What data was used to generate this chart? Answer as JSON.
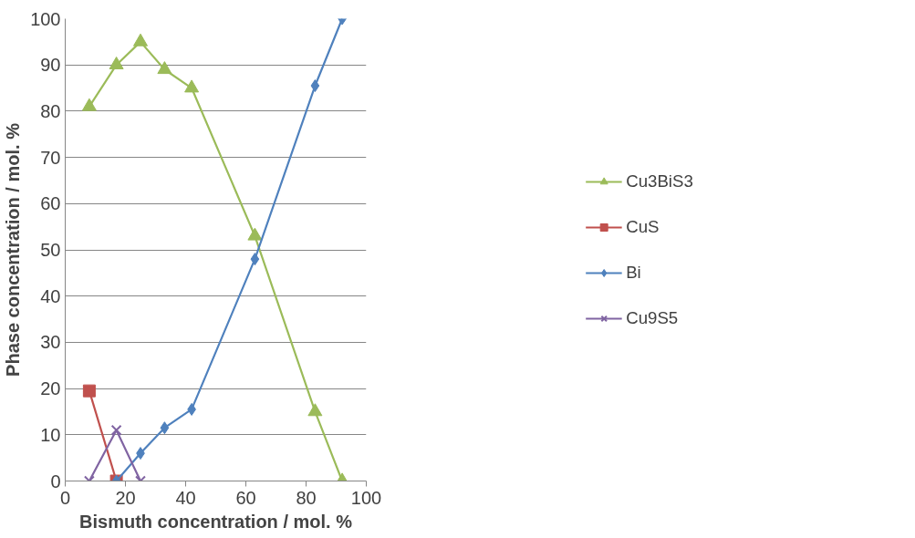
{
  "chart_data": {
    "type": "line",
    "xlabel": "Bismuth concentration / mol. %",
    "ylabel": "Phase concentration / mol. %",
    "xlim": [
      0,
      100
    ],
    "xticks": [
      0,
      20,
      40,
      60,
      80,
      100
    ],
    "ylim": [
      0,
      100
    ],
    "yticks": [
      0,
      10,
      20,
      30,
      40,
      50,
      60,
      70,
      80,
      90,
      100
    ],
    "grid": "y",
    "legend": "right",
    "line_style": "solid",
    "series": [
      {
        "name": "Cu3BiS3",
        "color": "#9bbb59",
        "marker": "triangle",
        "x": [
          8,
          17,
          25,
          33,
          42,
          63,
          83,
          92
        ],
        "values": [
          81,
          90,
          95,
          89,
          85,
          53,
          15,
          0
        ]
      },
      {
        "name": "CuS",
        "color": "#c0504d",
        "marker": "square",
        "x": [
          8,
          17
        ],
        "values": [
          19.5,
          0
        ]
      },
      {
        "name": "Bi",
        "color": "#4f81bd",
        "marker": "diamond",
        "x": [
          17,
          25,
          33,
          42,
          63,
          83,
          92
        ],
        "values": [
          0,
          6,
          11.5,
          15.5,
          48,
          85.5,
          100
        ]
      },
      {
        "name": "Cu9S5",
        "color": "#8064a2",
        "marker": "cross",
        "x": [
          8,
          17,
          25
        ],
        "values": [
          0,
          11,
          0
        ]
      }
    ]
  }
}
